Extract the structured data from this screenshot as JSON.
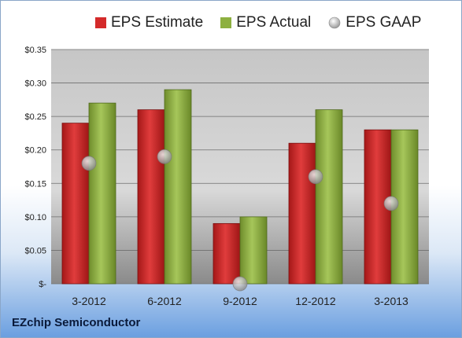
{
  "chart_data": {
    "type": "bar",
    "categories": [
      "3-2012",
      "6-2012",
      "9-2012",
      "12-2012",
      "3-2013"
    ],
    "series": [
      {
        "name": "EPS Estimate",
        "type": "bar",
        "color": "#d42a2a",
        "values": [
          0.24,
          0.26,
          0.09,
          0.21,
          0.23
        ]
      },
      {
        "name": "EPS Actual",
        "type": "bar",
        "color": "#8db040",
        "values": [
          0.27,
          0.29,
          0.1,
          0.26,
          0.23
        ]
      },
      {
        "name": "EPS GAAP",
        "type": "scatter",
        "color": "#a8a8a8",
        "values": [
          0.18,
          0.19,
          0.0,
          0.16,
          0.12
        ]
      }
    ],
    "yticks": [
      0,
      0.05,
      0.1,
      0.15,
      0.2,
      0.25,
      0.3,
      0.35
    ],
    "ytick_labels": [
      "$-",
      "$0.05",
      "$0.10",
      "$0.15",
      "$0.20",
      "$0.25",
      "$0.30",
      "$0.35"
    ],
    "ylim": [
      0,
      0.35
    ],
    "grid": true,
    "legend_position": "top"
  },
  "footer": {
    "company": "EZchip Semiconductor"
  }
}
